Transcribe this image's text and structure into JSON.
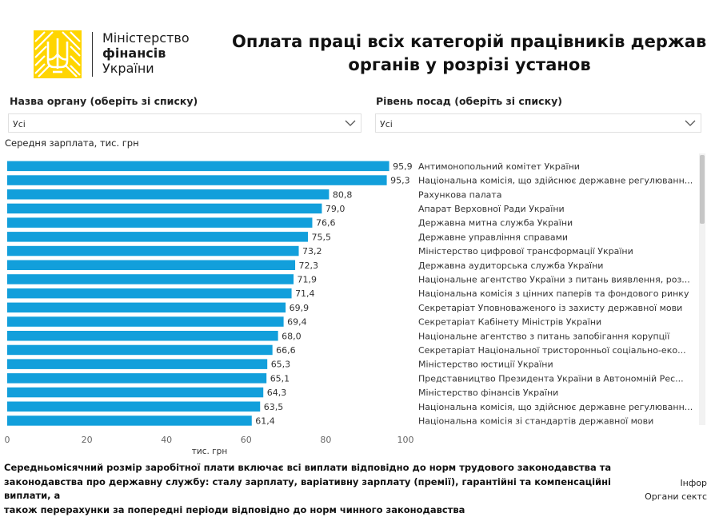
{
  "header": {
    "logo_line1": "Міністерство",
    "logo_line2": "фінансів",
    "logo_line3": "України",
    "title_line1": "Оплата праці всіх категорій працівників державни",
    "title_line2": "органів у розрізі установ"
  },
  "filters": {
    "organ_label": "Назва органу (оберіть зі списку)",
    "organ_value": "Усі",
    "level_label": "Рівень посад (оберіть зі списку)",
    "level_value": "Усі"
  },
  "colors": {
    "bar": "#129fdb",
    "accent": "#ffd500"
  },
  "chart_data": {
    "type": "bar",
    "orientation": "horizontal",
    "ylabel": "Середня зарплата, тис. грн",
    "xlabel": "тис. грн",
    "xlim": [
      0,
      100
    ],
    "xticks": [
      0,
      20,
      40,
      60,
      80,
      100
    ],
    "grid": false,
    "categories": [
      "Антимонопольний комітет України",
      "Національна комісія, що здійснює державне регулюванн...",
      "Рахункова палата",
      "Апарат Верховної Ради України",
      "Державна митна служба України",
      "Державне управління справами",
      "Міністерство цифрової трансформації України",
      "Державна аудиторська служба України",
      "Національне агентство України з питань виявлення, роз...",
      "Національна комісія з цінних паперів та фондового ринку",
      "Секретаріат Уповноваженого із захисту державної мови",
      "Секретаріат Кабінету Міністрів України",
      "Національне агентство з питань запобігання корупції",
      "Секретаріат Національної тристоронньої соціально-еко...",
      "Міністерство юстиції України",
      "Представництво Президента України в Автономній Рес...",
      "Міністерство фінансів України",
      "Національна комісія, що здійснює державне регулюванн...",
      "Національна комісія зі стандартів державної мови"
    ],
    "values": [
      95.9,
      95.3,
      80.8,
      79.0,
      76.6,
      75.5,
      73.2,
      72.3,
      71.9,
      71.4,
      69.9,
      69.4,
      68.0,
      66.6,
      65.3,
      65.1,
      64.3,
      63.5,
      61.4
    ],
    "value_labels": [
      "95,9",
      "95,3",
      "80,8",
      "79,0",
      "76,6",
      "75,5",
      "73,2",
      "72,3",
      "71,9",
      "71,4",
      "69,9",
      "69,4",
      "68,0",
      "66,6",
      "65,3",
      "65,1",
      "64,3",
      "63,5",
      "61,4"
    ]
  },
  "footnote": {
    "line1": "Середньомісячний розмір заробітної плати включає всі виплати відповідно до норм трудового законодавства та",
    "line2": "законодавства про державну службу: сталу зарплату, варіативну зарплату (премії), гарантійні та компенсаційні виплати, а",
    "line3": "також перерахунки за попередні періоди відповідно до норм чинного законодавства"
  },
  "side_note": {
    "line1": "Інфор",
    "line2": "Органи сектс"
  }
}
